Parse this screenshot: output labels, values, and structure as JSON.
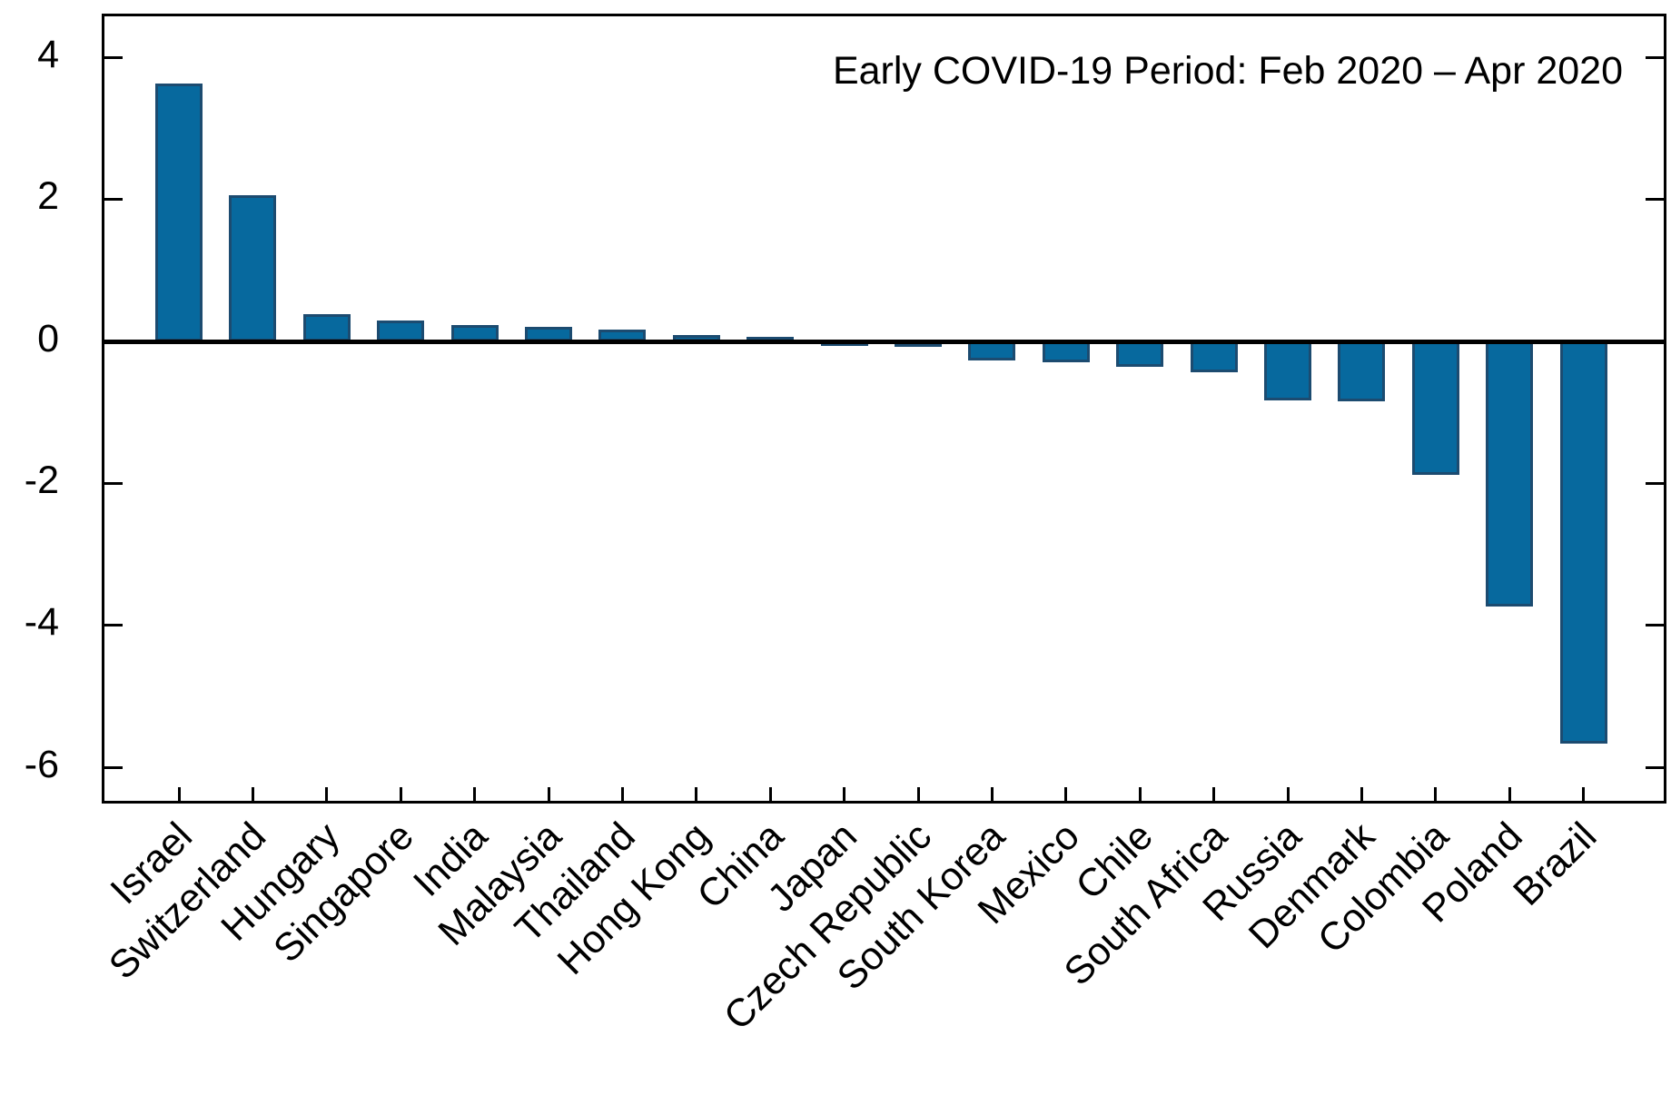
{
  "chart_data": {
    "type": "bar",
    "title": "Early COVID-19 Period: Feb 2020 – Apr 2020",
    "categories": [
      "Israel",
      "Switzerland",
      "Hungary",
      "Singapore",
      "India",
      "Malaysia",
      "Thailand",
      "Hong Kong",
      "China",
      "Japan",
      "Czech Republic",
      "South Korea",
      "Mexico",
      "Chile",
      "South Africa",
      "Russia",
      "Denmark",
      "Colombia",
      "Poland",
      "Brazil"
    ],
    "values": [
      3.63,
      2.06,
      0.38,
      0.29,
      0.23,
      0.2,
      0.17,
      0.09,
      0.06,
      0.01,
      -0.01,
      -0.27,
      -0.3,
      -0.36,
      -0.43,
      -0.83,
      -0.84,
      -1.88,
      -3.74,
      -5.67
    ],
    "y_ticks": [
      4,
      2,
      0,
      -2,
      -4,
      -6
    ],
    "ylim": [
      -6.55,
      4.58
    ],
    "xlabel": "",
    "ylabel": "",
    "grid": false,
    "legend_position": "none",
    "bar_color": "#07699E",
    "bar_edge_color": "#1C4B70",
    "axis_color": "#000000"
  }
}
